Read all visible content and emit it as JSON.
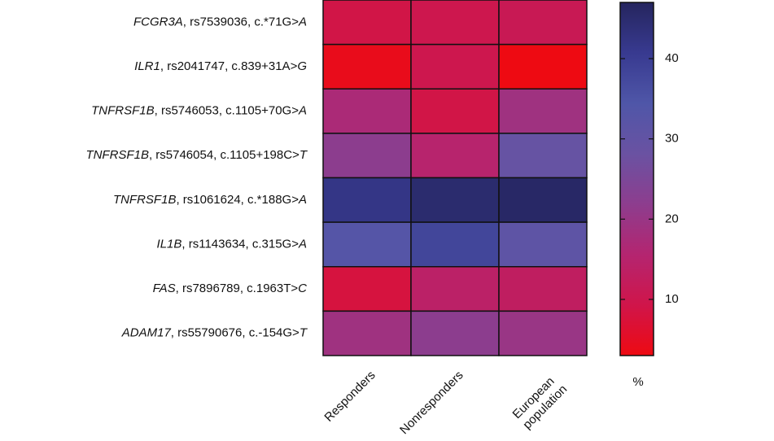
{
  "chart_data": {
    "type": "heatmap",
    "rows": [
      "FCGR3A, rs7539036, c.*71G>A",
      "ILR1, rs2041747, c.839+31A>G",
      "TNFRSF1B, rs5746053, c.1105+70G>A",
      "TNFRSF1B, rs5746054, c.1105+198C>T",
      "TNFRSF1B, rs1061624, c.*188G>A",
      "IL1B, rs1143634, c.315G>A",
      "FAS, rs7896789, c.1963T>C",
      "ADAM17, rs55790676, c.-154G>T"
    ],
    "columns": [
      "Responders",
      "Nonresponders",
      "European population"
    ],
    "values": [
      [
        9,
        10,
        11
      ],
      [
        4,
        10,
        3
      ],
      [
        17,
        9,
        19
      ],
      [
        22,
        15,
        29
      ],
      [
        42,
        45,
        46
      ],
      [
        33,
        38,
        31
      ],
      [
        8,
        14,
        13
      ],
      [
        19,
        22,
        20
      ]
    ],
    "zlim": [
      3,
      47
    ],
    "zticks": [
      10,
      20,
      30,
      40
    ],
    "zlabel": "%",
    "colorscale": [
      "#ee0a12",
      "#d0154a",
      "#b42570",
      "#8d3d8e",
      "#6a52a2",
      "#4f56a8",
      "#383a90",
      "#25255e"
    ]
  }
}
